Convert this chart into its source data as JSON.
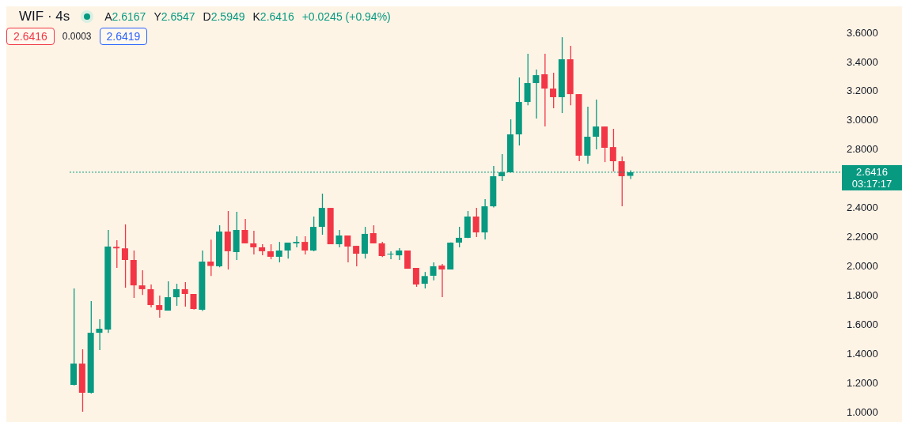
{
  "chart_data": {
    "type": "candlestick",
    "title": "WIF · 4s",
    "annotations": [
      "A2.6167",
      "Y2.6547",
      "D2.5949",
      "K2.6416",
      "+0.0245 (+0.94%)",
      "2.6416",
      "0.0003",
      "2.6419",
      "03:17:17"
    ],
    "categories": [
      null,
      null,
      null,
      null,
      null,
      null,
      null,
      null,
      null,
      null,
      null,
      null,
      null,
      null,
      null,
      null,
      null,
      null,
      null,
      null,
      null,
      null,
      null,
      null,
      null,
      null,
      null,
      null,
      null,
      null,
      null,
      null,
      null,
      null,
      null,
      null,
      null,
      null,
      null,
      null,
      null,
      null,
      null,
      null,
      null,
      null,
      null,
      null,
      null,
      null,
      null,
      null,
      null,
      null,
      null,
      null,
      null,
      null,
      null,
      null,
      null,
      null,
      null,
      null,
      null,
      null,
      null,
      null,
      null,
      null,
      null,
      null,
      null,
      null,
      null,
      null,
      null,
      null,
      null,
      null,
      null,
      null,
      null,
      null,
      null,
      null,
      null,
      null,
      null,
      null
    ],
    "ohlc": [
      [
        1.184,
        1.845,
        1.18,
        1.33
      ],
      [
        1.33,
        1.428,
        1.0,
        1.13
      ],
      [
        1.13,
        1.758,
        1.125,
        1.541
      ],
      [
        1.541,
        1.634,
        1.422,
        1.569
      ],
      [
        1.563,
        2.246,
        1.54,
        2.132
      ],
      [
        2.13,
        2.175,
        1.986,
        2.12
      ],
      [
        2.12,
        2.284,
        1.85,
        2.04
      ],
      [
        2.04,
        2.105,
        1.78,
        1.866
      ],
      [
        1.866,
        1.97,
        1.8,
        1.84
      ],
      [
        1.84,
        1.872,
        1.715,
        1.731
      ],
      [
        1.731,
        1.796,
        1.644,
        1.698
      ],
      [
        1.693,
        1.894,
        1.693,
        1.785
      ],
      [
        1.785,
        1.877,
        1.726,
        1.84
      ],
      [
        1.84,
        1.888,
        1.72,
        1.807
      ],
      [
        1.807,
        1.807,
        1.7,
        1.704
      ],
      [
        1.699,
        2.105,
        1.69,
        2.029
      ],
      [
        2.029,
        2.18,
        1.93,
        2.0
      ],
      [
        1.997,
        2.278,
        1.99,
        2.235
      ],
      [
        2.235,
        2.376,
        1.975,
        2.1
      ],
      [
        2.094,
        2.37,
        2.04,
        2.246
      ],
      [
        2.246,
        2.322,
        2.154,
        2.154
      ],
      [
        2.154,
        2.24,
        2.078,
        2.127
      ],
      [
        2.127,
        2.148,
        2.072,
        2.1
      ],
      [
        2.1,
        2.148,
        2.045,
        2.062
      ],
      [
        2.062,
        2.164,
        2.024,
        2.105
      ],
      [
        2.105,
        2.159,
        2.05,
        2.159
      ],
      [
        2.154,
        2.202,
        2.127,
        2.164
      ],
      [
        2.164,
        2.202,
        2.078,
        2.105
      ],
      [
        2.105,
        2.338,
        2.1,
        2.267
      ],
      [
        2.267,
        2.495,
        2.213,
        2.397
      ],
      [
        2.397,
        2.397,
        2.148,
        2.148
      ],
      [
        2.148,
        2.246,
        2.127,
        2.208
      ],
      [
        2.208,
        2.208,
        2.024,
        2.132
      ],
      [
        2.137,
        2.137,
        1.997,
        2.083
      ],
      [
        2.083,
        2.267,
        2.05,
        2.219
      ],
      [
        2.224,
        2.278,
        2.154,
        2.154
      ],
      [
        2.154,
        2.164,
        2.06,
        2.067
      ],
      [
        2.078,
        2.1,
        2.045,
        2.083
      ],
      [
        2.072,
        2.121,
        2.04,
        2.105
      ],
      [
        2.105,
        2.105,
        1.98,
        1.98
      ],
      [
        1.986,
        1.986,
        1.856,
        1.872
      ],
      [
        1.877,
        1.958,
        1.845,
        1.93
      ],
      [
        1.932,
        2.024,
        1.9,
        1.997
      ],
      [
        2.002,
        2.013,
        1.785,
        1.975
      ],
      [
        1.975,
        2.16,
        1.975,
        2.159
      ],
      [
        2.159,
        2.267,
        2.127,
        2.192
      ],
      [
        2.192,
        2.376,
        2.19,
        2.338
      ],
      [
        2.338,
        2.397,
        2.197,
        2.229
      ],
      [
        2.229,
        2.457,
        2.181,
        2.408
      ],
      [
        2.408,
        2.684,
        2.4,
        2.614
      ],
      [
        2.614,
        2.766,
        2.582,
        2.641
      ],
      [
        2.641,
        3.004,
        2.64,
        2.901
      ],
      [
        2.901,
        3.291,
        2.825,
        3.123
      ],
      [
        3.123,
        3.454,
        3.1,
        3.253
      ],
      [
        3.253,
        3.345,
        3.01,
        3.307
      ],
      [
        3.313,
        3.454,
        2.955,
        3.215
      ],
      [
        3.215,
        3.324,
        3.08,
        3.156
      ],
      [
        3.156,
        3.567,
        3.047,
        3.416
      ],
      [
        3.416,
        3.508,
        3.1,
        3.177
      ],
      [
        3.177,
        3.177,
        2.717,
        2.755
      ],
      [
        2.755,
        3.091,
        2.7,
        2.885
      ],
      [
        2.885,
        3.14,
        2.798,
        2.955
      ],
      [
        2.955,
        2.955,
        2.711,
        2.809
      ],
      [
        2.814,
        2.939,
        2.647,
        2.717
      ],
      [
        2.717,
        2.75,
        2.408,
        2.614
      ],
      [
        2.6167,
        2.6547,
        2.5949,
        2.6416
      ],
      null,
      null,
      null,
      null,
      null,
      null,
      null,
      null,
      null,
      null,
      null,
      null,
      null,
      null,
      null,
      null,
      null,
      null,
      null,
      null,
      null,
      null,
      null,
      null
    ],
    "ylim": [
      1.0,
      3.6
    ],
    "yticks": [
      {
        "value": 1.0,
        "label": "1.0000"
      },
      {
        "value": 1.2,
        "label": "1.2000"
      },
      {
        "value": 1.4,
        "label": "1.4000"
      },
      {
        "value": 1.6,
        "label": "1.6000"
      },
      {
        "value": 1.8,
        "label": "1.8000"
      },
      {
        "value": 2.0,
        "label": "2.0000"
      },
      {
        "value": 2.2,
        "label": "2.2000"
      },
      {
        "value": 2.4,
        "label": "2.4000"
      },
      {
        "value": 2.8,
        "label": "2.8000"
      },
      {
        "value": 3.0,
        "label": "3.0000"
      },
      {
        "value": 3.2,
        "label": "3.2000"
      },
      {
        "value": 3.4,
        "label": "3.4000"
      },
      {
        "value": 3.6,
        "label": "3.6000"
      }
    ],
    "ref_lines": [
      {
        "axis": "y",
        "value": 2.6416,
        "label": "2.6416",
        "color": "#089981",
        "line_style": "dotted"
      }
    ],
    "tick_labels": "y"
  }
}
